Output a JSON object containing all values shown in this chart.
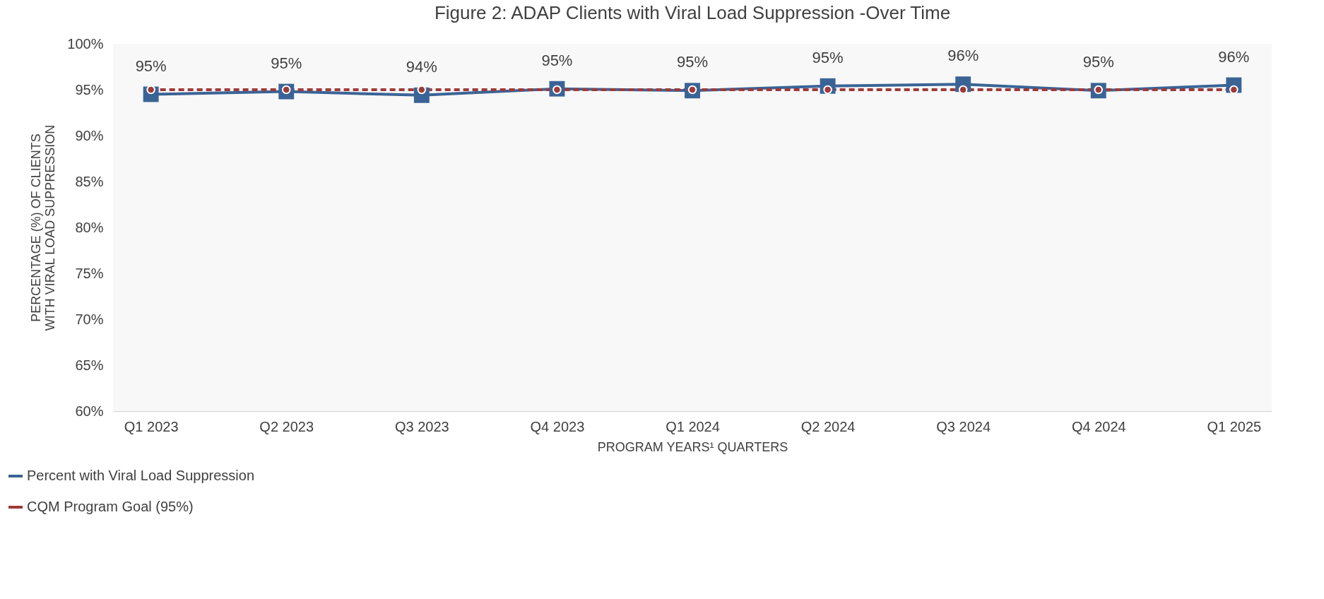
{
  "chart_data": {
    "type": "line",
    "title": "Figure 2: ADAP Clients with Viral Load Suppression -Over Time",
    "xlabel": "PROGRAM YEARS¹ QUARTERS",
    "ylabel": "PERCENTAGE (%) OF CLIENTS WITH VIRAL LOAD SUPPRESSION",
    "categories": [
      "Q1 2023",
      "Q2 2023",
      "Q3 2023",
      "Q4 2023",
      "Q1 2024",
      "Q2 2024",
      "Q3 2024",
      "Q4 2024",
      "Q1 2025"
    ],
    "series": [
      {
        "name": "Percent with Viral Load Suppression",
        "color": "#3a6496",
        "marker": "square",
        "line_style": "solid",
        "values": [
          94.5,
          94.8,
          94.4,
          95.1,
          94.9,
          95.4,
          95.6,
          94.9,
          95.5
        ],
        "value_labels": [
          "95%",
          "95%",
          "94%",
          "95%",
          "95%",
          "95%",
          "96%",
          "95%",
          "96%"
        ]
      },
      {
        "name": "CQM Program Goal (95%)",
        "color": "#9e3a38",
        "marker": "circle",
        "line_style": "dashed",
        "values": [
          95,
          95,
          95,
          95,
          95,
          95,
          95,
          95,
          95
        ]
      }
    ],
    "ylim": [
      60,
      100
    ],
    "yticks": [
      {
        "value": 60,
        "label": "60%"
      },
      {
        "value": 65,
        "label": "65%"
      },
      {
        "value": 70,
        "label": "70%"
      },
      {
        "value": 75,
        "label": "75%"
      },
      {
        "value": 80,
        "label": "80%"
      },
      {
        "value": 85,
        "label": "85%"
      },
      {
        "value": 90,
        "label": "90%"
      },
      {
        "value": 95,
        "label": "95%"
      },
      {
        "value": 100,
        "label": "100%"
      }
    ],
    "grid": false,
    "legend": "bottom left"
  }
}
